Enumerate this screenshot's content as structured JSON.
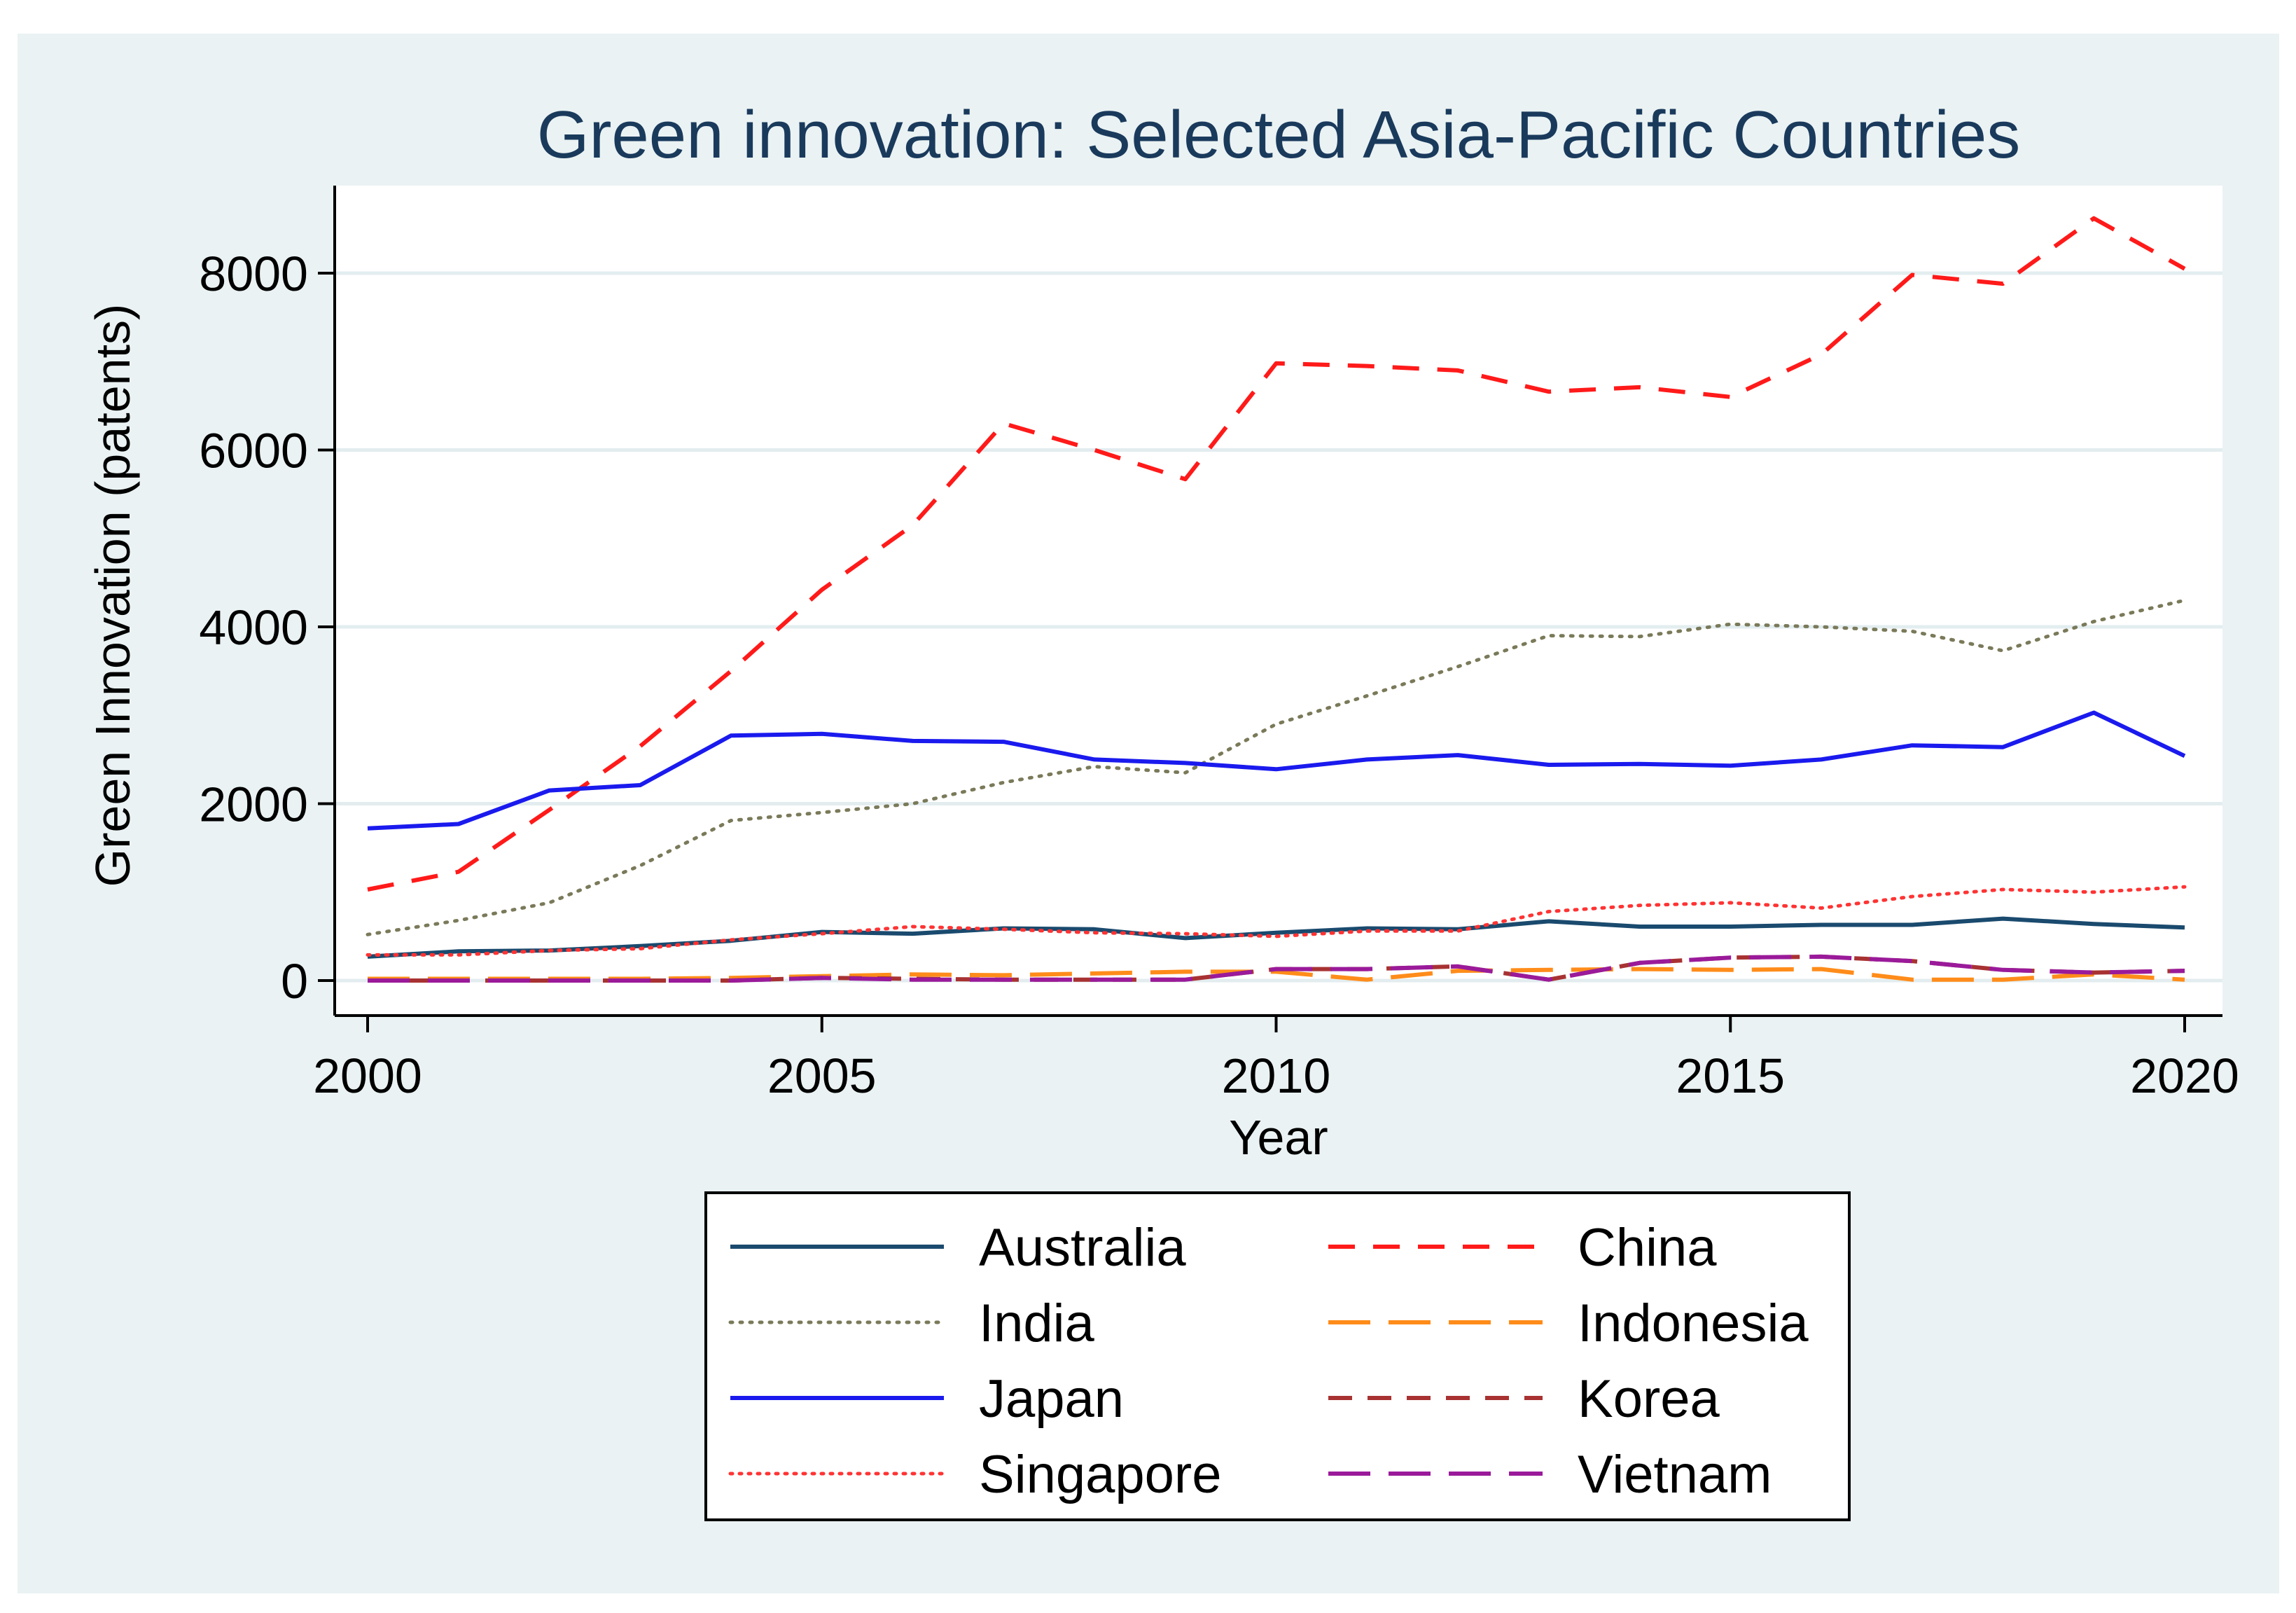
{
  "chart_data": {
    "type": "line",
    "title": "Green innovation: Selected Asia-Pacific Countries",
    "xlabel": "Year",
    "ylabel": "Green Innovation (patents)",
    "xlim": [
      2000,
      2020
    ],
    "ylim": [
      0,
      9000
    ],
    "xticks": [
      2000,
      2005,
      2010,
      2015,
      2020
    ],
    "yticks": [
      0,
      2000,
      4000,
      6000,
      8000
    ],
    "xtick_labels": [
      "2000",
      "2005",
      "2010",
      "2015",
      "2020"
    ],
    "ytick_labels": [
      "0",
      "2000",
      "4000",
      "6000",
      "8000"
    ],
    "grid": true,
    "legend_position": "bottom",
    "x": [
      2000,
      2001,
      2002,
      2003,
      2004,
      2005,
      2006,
      2007,
      2008,
      2009,
      2010,
      2011,
      2012,
      2013,
      2014,
      2015,
      2016,
      2017,
      2018,
      2019,
      2020
    ],
    "series": [
      {
        "name": "Australia",
        "color": "#1a4a6e",
        "dash": "solid",
        "values": [
          270,
          330,
          340,
          390,
          450,
          550,
          530,
          590,
          580,
          480,
          540,
          590,
          580,
          670,
          610,
          610,
          630,
          630,
          700,
          640,
          600
        ]
      },
      {
        "name": "China",
        "color": "#ff1a1a",
        "dash": "dash",
        "values": [
          1030,
          1230,
          1930,
          2650,
          3500,
          4420,
          5150,
          6300,
          6000,
          5670,
          6980,
          6950,
          6900,
          6660,
          6710,
          6600,
          7080,
          7980,
          7880,
          8620,
          8050
        ]
      },
      {
        "name": "India",
        "color": "#7a7a5a",
        "dash": "dot",
        "values": [
          520,
          680,
          880,
          1300,
          1810,
          1900,
          2000,
          2240,
          2420,
          2350,
          2900,
          3220,
          3550,
          3900,
          3890,
          4030,
          4000,
          3950,
          3730,
          4060,
          4300
        ]
      },
      {
        "name": "Indonesia",
        "color": "#ff8c1a",
        "dash": "longdash",
        "values": [
          20,
          20,
          20,
          20,
          30,
          50,
          70,
          60,
          80,
          100,
          100,
          10,
          110,
          120,
          130,
          120,
          130,
          10,
          10,
          70,
          10
        ]
      },
      {
        "name": "Japan",
        "color": "#1a1aee",
        "dash": "solid",
        "values": [
          1720,
          1770,
          2150,
          2210,
          2770,
          2790,
          2710,
          2700,
          2500,
          2460,
          2390,
          2500,
          2550,
          2440,
          2450,
          2430,
          2500,
          2660,
          2640,
          3030,
          2540
        ]
      },
      {
        "name": "Korea",
        "color": "#a83232",
        "dash": "dash2",
        "values": [
          0,
          0,
          0,
          0,
          0,
          30,
          20,
          10,
          10,
          10,
          130,
          130,
          160,
          10,
          200,
          260,
          270,
          220,
          120,
          90,
          110
        ]
      },
      {
        "name": "Singapore",
        "color": "#ff3333",
        "dash": "finedot",
        "values": [
          290,
          290,
          340,
          360,
          460,
          530,
          610,
          580,
          540,
          530,
          500,
          560,
          560,
          780,
          850,
          880,
          820,
          950,
          1030,
          1000,
          1060
        ]
      },
      {
        "name": "Vietnam",
        "color": "#9a1a9a",
        "dash": "longdash",
        "values": [
          0,
          0,
          0,
          0,
          0,
          30,
          10,
          10,
          10,
          10,
          130,
          130,
          160,
          10,
          200,
          260,
          270,
          220,
          120,
          90,
          110
        ]
      }
    ],
    "legend_order": [
      "Australia",
      "China",
      "India",
      "Indonesia",
      "Japan",
      "Korea",
      "Singapore",
      "Vietnam"
    ]
  }
}
